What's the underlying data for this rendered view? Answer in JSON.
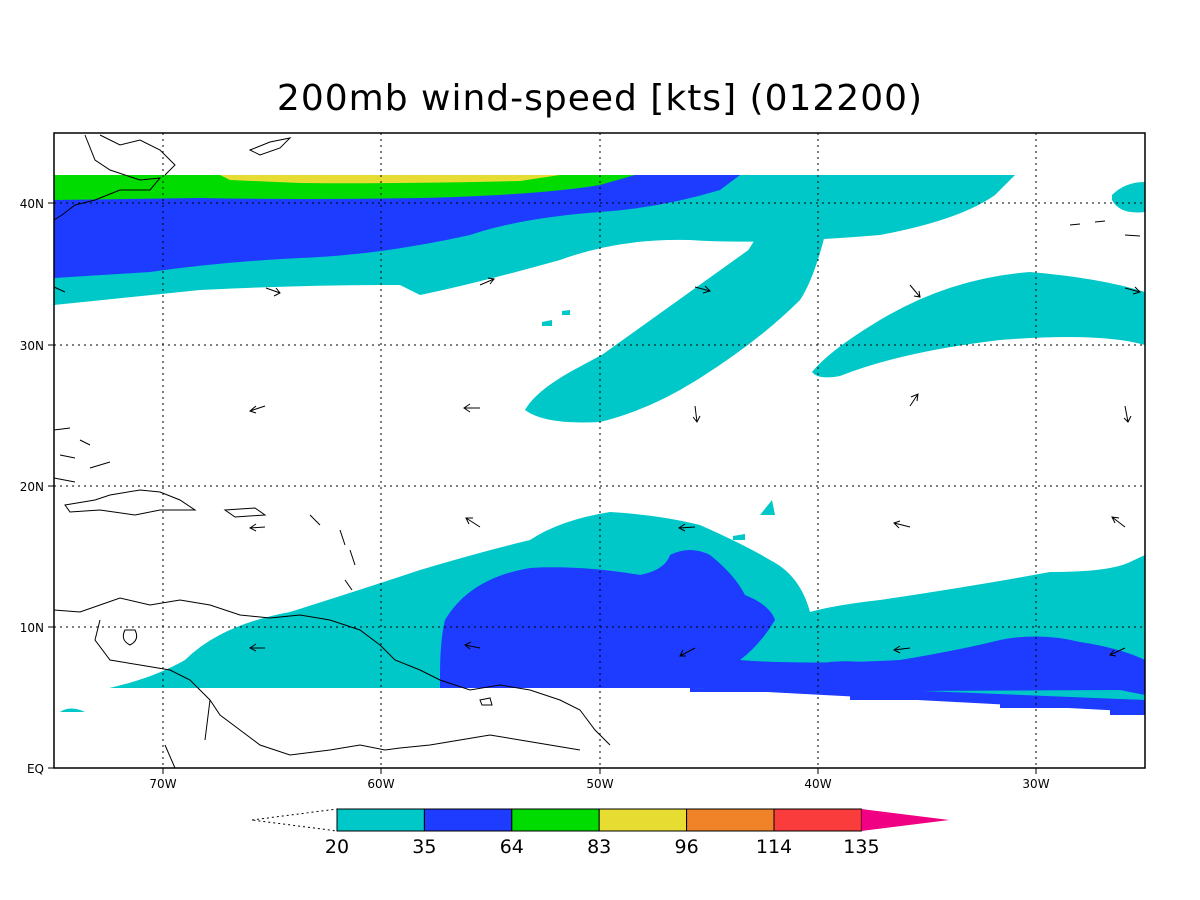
{
  "title": "200mb wind-speed [kts] (012200)",
  "axes": {
    "lat_labels": [
      "40N",
      "30N",
      "20N",
      "10N",
      "EQ"
    ],
    "lon_labels": [
      "70W",
      "60W",
      "50W",
      "40W",
      "30W"
    ]
  },
  "colorbar": {
    "thresholds": [
      "20",
      "35",
      "64",
      "83",
      "96",
      "114",
      "135"
    ],
    "colors": [
      "#00c8c8",
      "#1e3cff",
      "#00dc00",
      "#e6dc32",
      "#f08228",
      "#fa3c3c",
      "#f00082"
    ]
  },
  "map": {
    "domain_lon": [
      -75,
      -25
    ],
    "domain_lat": [
      0,
      45
    ],
    "bands": [
      {
        "name": "20-35 kts",
        "color": "#00c8c8"
      },
      {
        "name": "35-64 kts",
        "color": "#1e3cff"
      },
      {
        "name": "64-83 kts",
        "color": "#00dc00"
      },
      {
        "name": "83-96 kts",
        "color": "#e6dc32"
      }
    ]
  }
}
